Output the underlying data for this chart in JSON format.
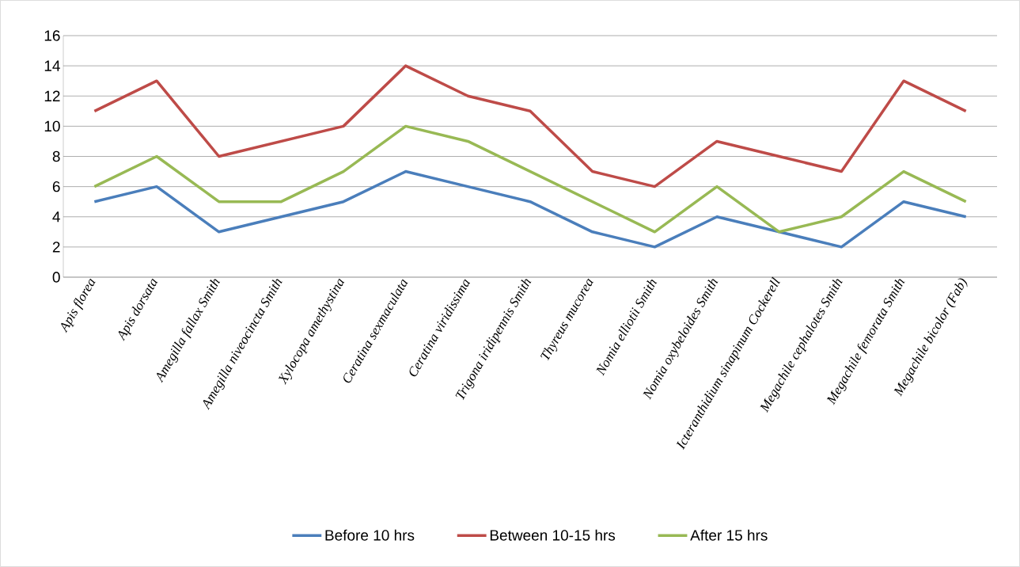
{
  "chart_data": {
    "type": "line",
    "categories": [
      "Apis florea",
      "Apis dorsata",
      "Amegilla fallax Smith",
      "Amegilla niveocincta Smith",
      "Xylocopa amethystina",
      "Ceratina sexmaculata",
      "Ceratina viridissima",
      "Trigona iridipennis Smith",
      "Thyreus mucorea",
      "Nomia elliotii Smith",
      "Nomia oxybeloides Smith",
      "Icteranthidium sinapinum Cockerell",
      "Megachile cephalotes Smith",
      "Megachile femorata Smith",
      "Megachile bicolor (Fab)"
    ],
    "series": [
      {
        "name": "Before 10 hrs",
        "color": "#4a7ebb",
        "values": [
          5,
          6,
          3,
          4,
          5,
          7,
          6,
          5,
          3,
          2,
          4,
          3,
          2,
          5,
          4
        ]
      },
      {
        "name": "Between 10-15 hrs",
        "color": "#be4b48",
        "values": [
          11,
          13,
          8,
          9,
          10,
          14,
          12,
          11,
          7,
          6,
          9,
          8,
          7,
          13,
          11
        ]
      },
      {
        "name": "After 15 hrs",
        "color": "#98b954",
        "values": [
          6,
          8,
          5,
          5,
          7,
          10,
          9,
          7,
          5,
          3,
          6,
          3,
          4,
          7,
          5
        ]
      }
    ],
    "ylim": [
      0,
      16
    ],
    "yticks": [
      0,
      2,
      4,
      6,
      8,
      10,
      12,
      14,
      16
    ],
    "grid": "y",
    "legend": "bottom",
    "marker": "none",
    "line_style": "solid"
  }
}
